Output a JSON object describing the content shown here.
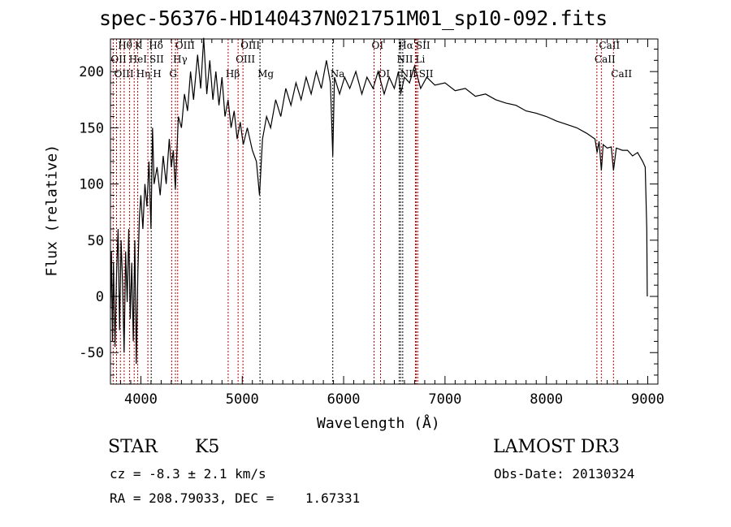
{
  "chart_data": {
    "type": "line",
    "title": "spec-56376-HD140437N021751M01_sp10-092.fits",
    "xlabel": "Wavelength (Å)",
    "ylabel": "Flux (relative)",
    "xlim": [
      3700,
      9100
    ],
    "ylim": [
      -78,
      229
    ],
    "xticks": [
      4000,
      5000,
      6000,
      7000,
      8000,
      9000
    ],
    "yticks": [
      -50,
      0,
      50,
      100,
      150,
      200
    ],
    "spectrum": [
      [
        3700,
        -10
      ],
      [
        3710,
        40
      ],
      [
        3720,
        -40
      ],
      [
        3730,
        30
      ],
      [
        3745,
        -45
      ],
      [
        3760,
        20
      ],
      [
        3775,
        60
      ],
      [
        3790,
        -30
      ],
      [
        3805,
        50
      ],
      [
        3820,
        10
      ],
      [
        3835,
        -50
      ],
      [
        3850,
        40
      ],
      [
        3865,
        -5
      ],
      [
        3880,
        60
      ],
      [
        3895,
        -20
      ],
      [
        3910,
        30
      ],
      [
        3925,
        -40
      ],
      [
        3940,
        50
      ],
      [
        3955,
        -60
      ],
      [
        3970,
        20
      ],
      [
        3985,
        70
      ],
      [
        4000,
        90
      ],
      [
        4020,
        60
      ],
      [
        4040,
        100
      ],
      [
        4060,
        80
      ],
      [
        4080,
        120
      ],
      [
        4100,
        60
      ],
      [
        4115,
        150
      ],
      [
        4130,
        100
      ],
      [
        4160,
        115
      ],
      [
        4190,
        90
      ],
      [
        4220,
        125
      ],
      [
        4250,
        100
      ],
      [
        4280,
        140
      ],
      [
        4300,
        115
      ],
      [
        4320,
        130
      ],
      [
        4340,
        95
      ],
      [
        4370,
        160
      ],
      [
        4400,
        150
      ],
      [
        4430,
        180
      ],
      [
        4460,
        165
      ],
      [
        4490,
        200
      ],
      [
        4520,
        175
      ],
      [
        4560,
        215
      ],
      [
        4590,
        185
      ],
      [
        4620,
        230
      ],
      [
        4650,
        180
      ],
      [
        4680,
        210
      ],
      [
        4710,
        175
      ],
      [
        4740,
        200
      ],
      [
        4770,
        170
      ],
      [
        4800,
        195
      ],
      [
        4830,
        160
      ],
      [
        4860,
        175
      ],
      [
        4890,
        150
      ],
      [
        4920,
        165
      ],
      [
        4950,
        140
      ],
      [
        4980,
        155
      ],
      [
        5010,
        135
      ],
      [
        5050,
        150
      ],
      [
        5100,
        130
      ],
      [
        5140,
        120
      ],
      [
        5170,
        90
      ],
      [
        5200,
        140
      ],
      [
        5240,
        160
      ],
      [
        5280,
        150
      ],
      [
        5330,
        175
      ],
      [
        5380,
        160
      ],
      [
        5430,
        185
      ],
      [
        5480,
        170
      ],
      [
        5530,
        190
      ],
      [
        5580,
        175
      ],
      [
        5630,
        195
      ],
      [
        5680,
        180
      ],
      [
        5730,
        200
      ],
      [
        5780,
        185
      ],
      [
        5830,
        210
      ],
      [
        5870,
        190
      ],
      [
        5893,
        125
      ],
      [
        5910,
        195
      ],
      [
        5960,
        180
      ],
      [
        6010,
        195
      ],
      [
        6060,
        185
      ],
      [
        6120,
        200
      ],
      [
        6180,
        180
      ],
      [
        6230,
        195
      ],
      [
        6290,
        185
      ],
      [
        6340,
        200
      ],
      [
        6400,
        180
      ],
      [
        6450,
        195
      ],
      [
        6500,
        185
      ],
      [
        6540,
        200
      ],
      [
        6563,
        180
      ],
      [
        6600,
        195
      ],
      [
        6650,
        190
      ],
      [
        6700,
        205
      ],
      [
        6760,
        185
      ],
      [
        6820,
        195
      ],
      [
        6900,
        188
      ],
      [
        7000,
        190
      ],
      [
        7100,
        183
      ],
      [
        7200,
        185
      ],
      [
        7300,
        178
      ],
      [
        7400,
        180
      ],
      [
        7500,
        175
      ],
      [
        7600,
        172
      ],
      [
        7700,
        170
      ],
      [
        7800,
        165
      ],
      [
        7900,
        163
      ],
      [
        8000,
        160
      ],
      [
        8100,
        156
      ],
      [
        8200,
        153
      ],
      [
        8300,
        150
      ],
      [
        8400,
        145
      ],
      [
        8480,
        140
      ],
      [
        8500,
        128
      ],
      [
        8520,
        138
      ],
      [
        8542,
        112
      ],
      [
        8560,
        135
      ],
      [
        8600,
        132
      ],
      [
        8640,
        133
      ],
      [
        8662,
        112
      ],
      [
        8690,
        132
      ],
      [
        8750,
        130
      ],
      [
        8800,
        130
      ],
      [
        8850,
        125
      ],
      [
        8900,
        128
      ],
      [
        8950,
        120
      ],
      [
        8975,
        115
      ],
      [
        8990,
        60
      ],
      [
        8995,
        0
      ]
    ],
    "lines": [
      {
        "label": "Hθ",
        "wl": 3798,
        "row": 1,
        "color": "#c00000"
      },
      {
        "label": "K",
        "wl": 3934,
        "row": 1,
        "color": "#c00000"
      },
      {
        "label": "Hδ",
        "wl": 4102,
        "row": 1,
        "color": "#000000"
      },
      {
        "label": "OIII",
        "wl": 4363,
        "row": 1,
        "color": "#c00000"
      },
      {
        "label": "OIII",
        "wl": 5007,
        "row": 1,
        "color": "#c00000"
      },
      {
        "label": "OI",
        "wl": 6300,
        "row": 1,
        "color": "#c00000"
      },
      {
        "label": "Hα",
        "wl": 6563,
        "row": 1,
        "color": "#000000"
      },
      {
        "label": "SII",
        "wl": 6717,
        "row": 1,
        "color": "#c00000"
      },
      {
        "label": "CaII",
        "wl": 8542,
        "row": 1,
        "color": "#c00000"
      },
      {
        "label": "OII",
        "wl": 3727,
        "row": 2,
        "color": "#c00000"
      },
      {
        "label": "HeI",
        "wl": 3889,
        "row": 2,
        "color": "#c00000"
      },
      {
        "label": "SII",
        "wl": 4069,
        "row": 2,
        "color": "#c00000"
      },
      {
        "label": "Hγ",
        "wl": 4341,
        "row": 2,
        "color": "#c00000"
      },
      {
        "label": "OIII",
        "wl": 4959,
        "row": 2,
        "color": "#c00000"
      },
      {
        "label": "NII",
        "wl": 6548,
        "row": 2,
        "color": "#000000"
      },
      {
        "label": "Li",
        "wl": 6708,
        "row": 2,
        "color": "#c00000"
      },
      {
        "label": "CaII",
        "wl": 8498,
        "row": 2,
        "color": "#c00000"
      },
      {
        "label": "OIII",
        "wl": 3760,
        "row": 3,
        "color": "#c00000"
      },
      {
        "label": "Hη",
        "wl": 3835,
        "row": 3,
        "color": "#c00000"
      },
      {
        "label": "H",
        "wl": 3969,
        "row": 3,
        "color": "#c00000"
      },
      {
        "label": "G",
        "wl": 4304,
        "row": 3,
        "color": "#c00000"
      },
      {
        "label": "Hβ",
        "wl": 4861,
        "row": 3,
        "color": "#c00000"
      },
      {
        "label": "Mg",
        "wl": 5175,
        "row": 3,
        "color": "#000000"
      },
      {
        "label": "Na",
        "wl": 5893,
        "row": 3,
        "color": "#000000"
      },
      {
        "label": "OI",
        "wl": 6364,
        "row": 3,
        "color": "#c00000"
      },
      {
        "label": "NII",
        "wl": 6583,
        "row": 3,
        "color": "#000000"
      },
      {
        "label": "SII",
        "wl": 6731,
        "row": 3,
        "color": "#c00000"
      },
      {
        "label": "CaII",
        "wl": 8662,
        "row": 3,
        "color": "#c00000"
      }
    ]
  },
  "info": {
    "class": "STAR",
    "subclass": "K5",
    "cz": "cz = -8.3 ± 2.1 km/s",
    "radec": "RA = 208.79033, DEC =    1.67331",
    "survey": "LAMOST DR3",
    "obsdate": "Obs-Date: 20130324"
  }
}
